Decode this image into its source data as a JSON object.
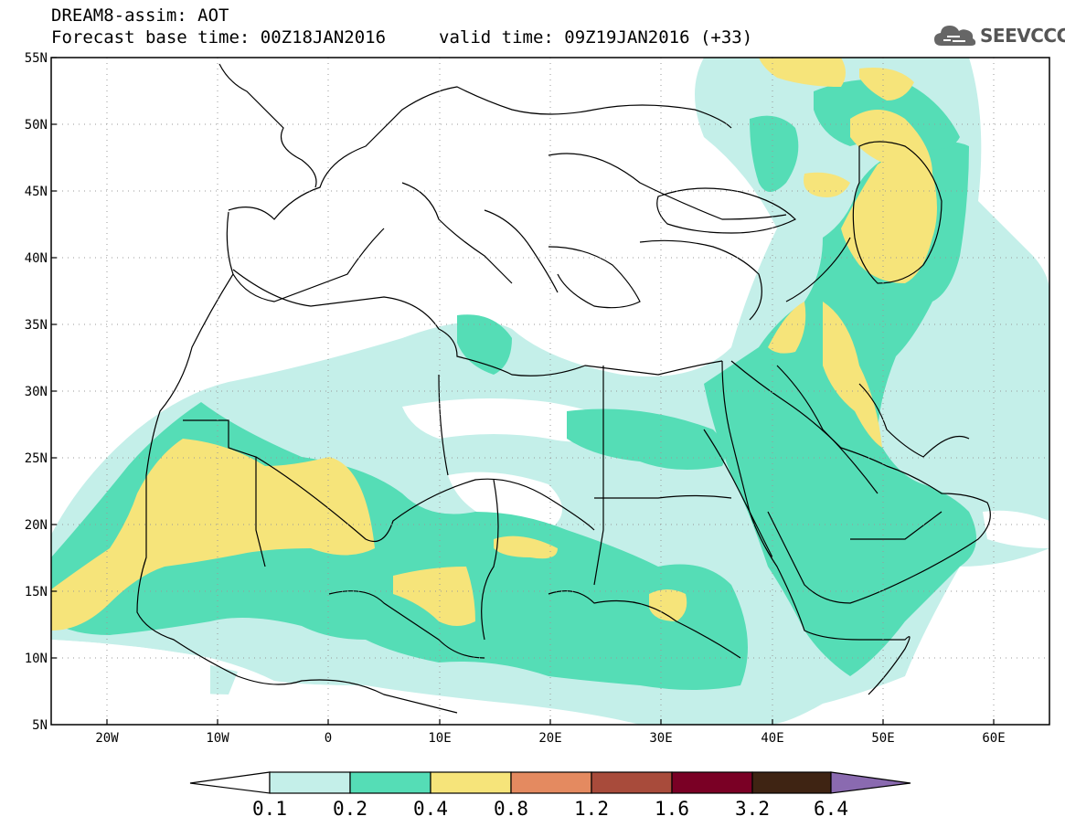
{
  "header": {
    "line1": "DREAM8-assim: AOT",
    "line2": "Forecast base time: 00Z18JAN2016",
    "line3": "valid time: 09Z19JAN2016 (+33)"
  },
  "logo": {
    "text": "SEEVCCC",
    "icon": "cloud-icon"
  },
  "map": {
    "lon_range": [
      -25,
      65
    ],
    "lat_range": [
      5,
      55
    ],
    "lat_ticks": [
      "55N",
      "50N",
      "45N",
      "40N",
      "35N",
      "30N",
      "25N",
      "20N",
      "15N",
      "10N",
      "5N"
    ],
    "lon_ticks": [
      "20W",
      "10W",
      "0",
      "10E",
      "20E",
      "30E",
      "40E",
      "50E",
      "60E"
    ],
    "gridlines": "dotted"
  },
  "colorbar": {
    "labels": [
      "0.1",
      "0.2",
      "0.4",
      "0.8",
      "1.2",
      "1.6",
      "3.2",
      "6.4"
    ],
    "colors": [
      "#ffffff",
      "#c4efe9",
      "#55ddb6",
      "#f6e47a",
      "#e48a60",
      "#a84b3b",
      "#7a0025",
      "#3f2413",
      "#8a6ab0"
    ]
  }
}
